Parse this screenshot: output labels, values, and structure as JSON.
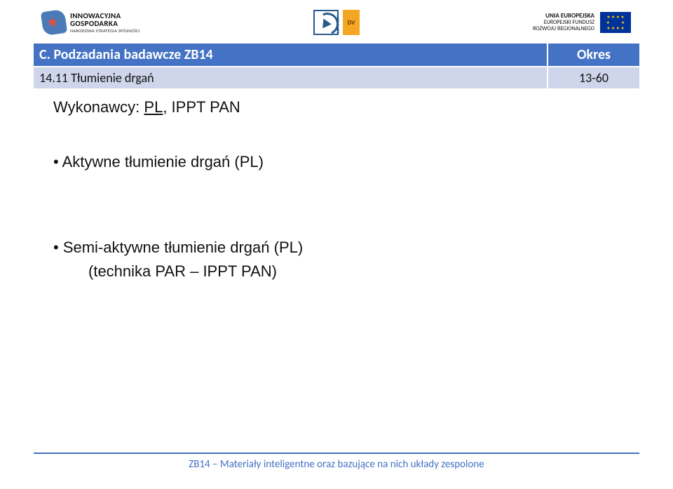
{
  "header": {
    "left": {
      "line1": "INNOWACYJNA",
      "line2": "GOSPODARKA",
      "line3": "NARODOWA STRATEGIA SPÓJNOŚCI"
    },
    "center": {
      "aeronet_label": "AERONET",
      "dv_label": "DV"
    },
    "right": {
      "line1": "UNIA EUROPEJSKA",
      "line2": "EUROPEJSKI FUNDUSZ",
      "line3": "ROZWOJU REGIONALNEGO"
    }
  },
  "table": {
    "header_bg": "#4472c4",
    "header_fg": "#ffffff",
    "row_bg": "#cfd5ea",
    "title_header": "C. Podzadania badawcze ZB14",
    "period_header": "Okres",
    "rows": [
      {
        "title": "14.11 Tłumienie drgań",
        "period": "13-60"
      }
    ]
  },
  "body": {
    "wykonawcy_prefix": "Wykonawcy: ",
    "wykonawcy_pl": "PL",
    "wykonawcy_suffix": ", IPPT PAN",
    "bullet1": "• Aktywne tłumienie drgań (PL)",
    "bullet2": "• Semi-aktywne tłumienie drgań (PL)",
    "bullet2_sub": "(technika PAR – IPPT PAN)",
    "font_size_pt": 22,
    "text_color": "#111111"
  },
  "footer": {
    "rule_color": "#4472c4",
    "text_color": "#4472c4",
    "text": "ZB14 – Materiały inteligentne oraz bazujące na nich układy zespolone"
  }
}
